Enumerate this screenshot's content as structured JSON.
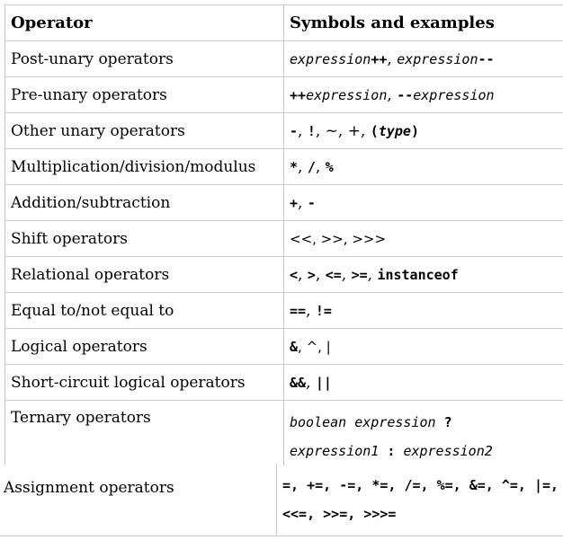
{
  "header": {
    "col1": "Operator",
    "col2": "Symbols and examples"
  },
  "rows": [
    {
      "name": "Post-unary operators",
      "sym": [
        "expression",
        "++",
        ", ",
        "expression",
        "--"
      ]
    },
    {
      "name": "Pre-unary operators",
      "sym": [
        "++",
        "expression",
        ", ",
        "--",
        "expression"
      ]
    },
    {
      "name": "Other unary operators",
      "sym": [
        "-",
        ", ",
        "!",
        ", ~, +, ",
        "(",
        "type",
        ")"
      ]
    },
    {
      "name": "Multiplication/division/modulus",
      "sym": [
        "*",
        ", ",
        "/",
        ", ",
        "%"
      ]
    },
    {
      "name": "Addition/subtraction",
      "sym": [
        "+",
        ", ",
        "-"
      ]
    },
    {
      "name": "Shift operators",
      "sym": [
        "<<, >>, >>>"
      ]
    },
    {
      "name": "Relational operators",
      "sym": [
        "<",
        ", ",
        ">",
        ", ",
        "<=",
        ", ",
        ">=",
        ", ",
        "instanceof"
      ]
    },
    {
      "name": "Equal to/not equal to",
      "sym": [
        "==",
        ", ",
        "!="
      ]
    },
    {
      "name": "Logical operators",
      "sym": [
        "&",
        ", ^, |"
      ]
    },
    {
      "name": "Short-circuit logical operators",
      "sym": [
        "&&",
        ", ",
        "||"
      ]
    },
    {
      "name": "Ternary operators",
      "line1": [
        "boolean expression",
        " ?"
      ],
      "line2": [
        "expression1",
        " : ",
        "expression2"
      ]
    }
  ],
  "assignment": {
    "name": "Assignment operators",
    "line1": "=, +=, -=, *=, /=, %=, &=, ^=, |=,",
    "line2": "<<=, >>=, >>>="
  }
}
